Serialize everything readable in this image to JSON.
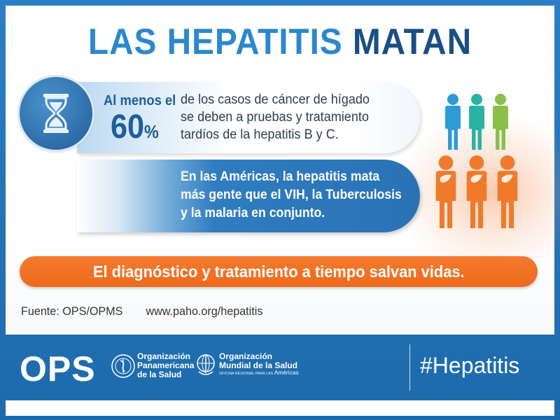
{
  "title": {
    "part1": "LAS HEPATITIS",
    "part2": "MATAN"
  },
  "stat": {
    "lead": "Al menos el",
    "number": "60",
    "sign": "%",
    "text_lines": [
      "de los casos de cáncer de hígado",
      "se deben a pruebas y tratamiento",
      "tardíos de la hepatitis B y C."
    ]
  },
  "americas": {
    "text_lines": [
      "En las Américas, la hepatitis mata",
      "más gente que el VIH, la Tuberculosis",
      "y la malaria en conjunto."
    ]
  },
  "cta": "El diagnóstico y tratamiento a tiempo salvan vidas.",
  "source": {
    "label": "Fuente: OPS/OPMS",
    "url": "www.paho.org/hepatitis"
  },
  "footer": {
    "ops_logo": "OPS",
    "org1_lines": [
      "Organización",
      "Panamericana",
      "de la Salud"
    ],
    "org2_lines": [
      "Organización",
      "Mundial de la Salud"
    ],
    "org2_small": "OFICINA REGIONAL PARA LAS",
    "org2_americas": "Américas",
    "hashtag": "#Hepatitis"
  },
  "icons": [
    "hourglass-icon",
    "person-icon",
    "liver-icon",
    "paho-emblem-icon",
    "who-emblem-icon"
  ],
  "colors": {
    "brand_blue": "#2c88cc",
    "dark_blue": "#1a4f84",
    "orange": "#f47a2e",
    "people_top": [
      "#2e9bd6",
      "#2ab3a3",
      "#8bbf4a"
    ],
    "people_bottom": "#f07a2c"
  }
}
